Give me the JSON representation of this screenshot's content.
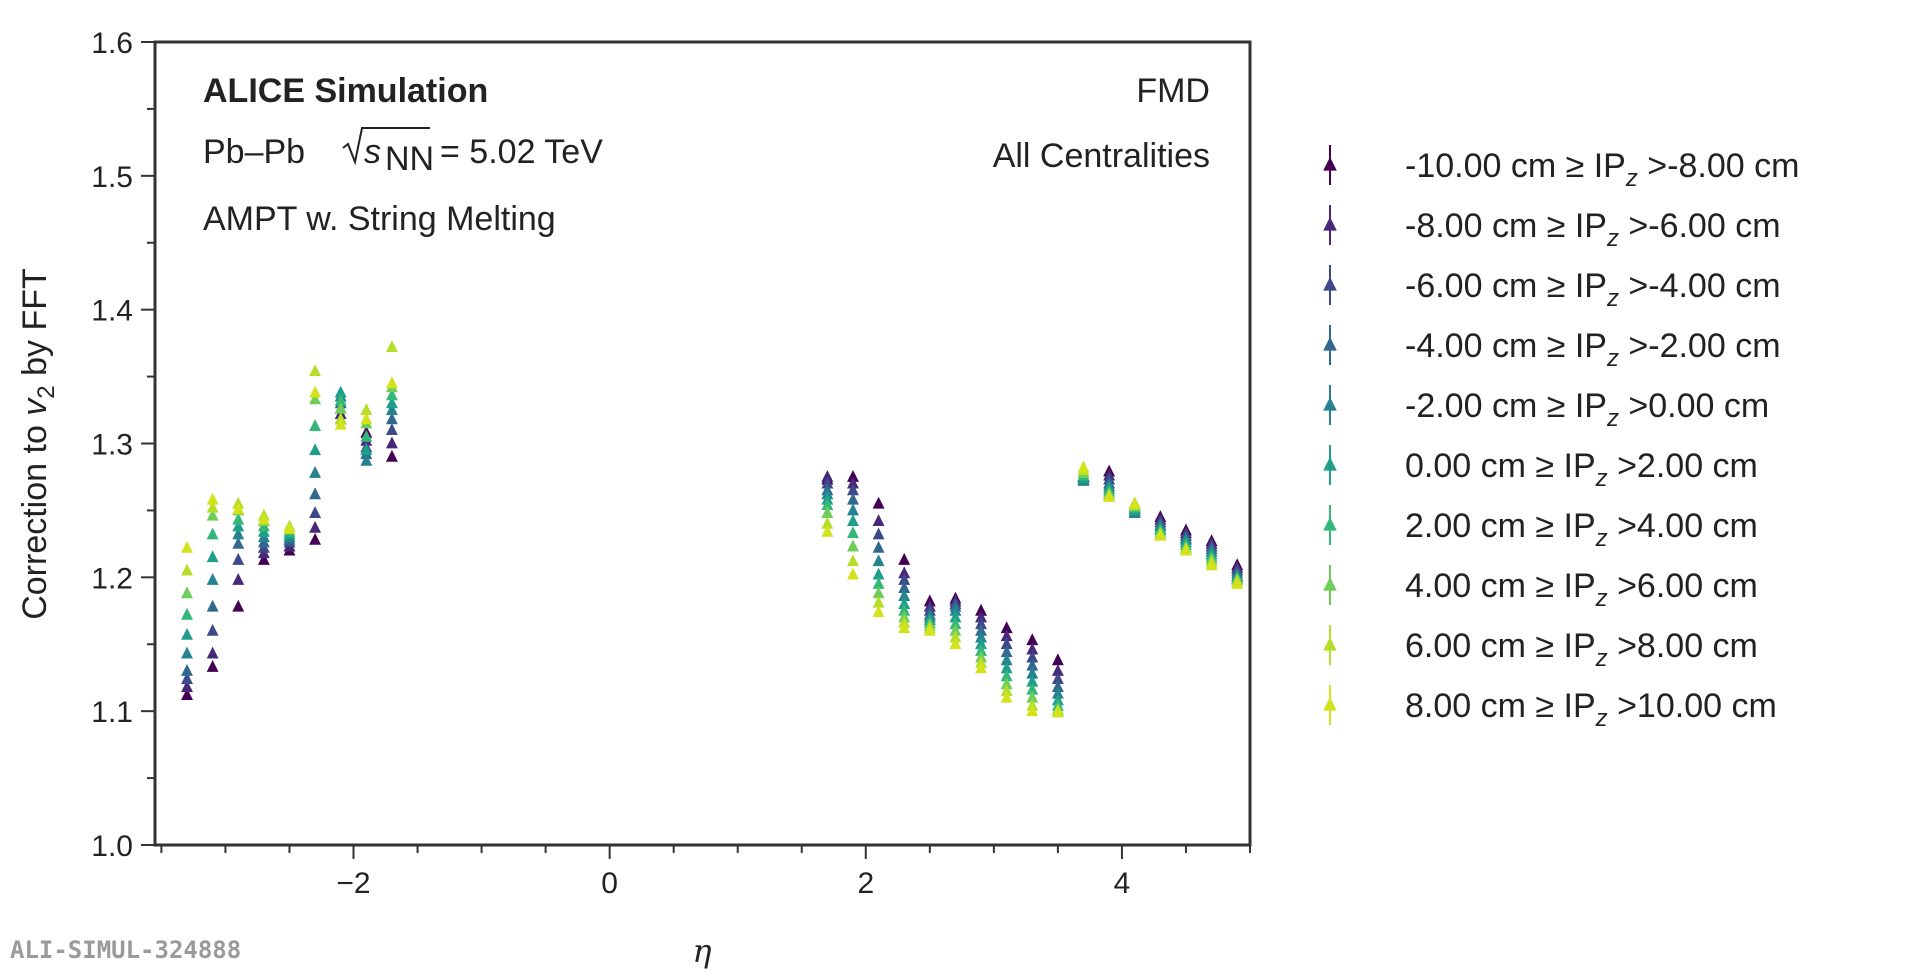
{
  "chart_data": {
    "type": "scatter",
    "title": "",
    "xlabel": "η",
    "ylabel_parts": [
      "Correction to ",
      "v",
      "2",
      " by FFT"
    ],
    "xlim": [
      -3.55,
      5.0
    ],
    "ylim": [
      1.0,
      1.6
    ],
    "x_ticks": [
      -2,
      0,
      2,
      4
    ],
    "x_tick_labels": [
      "−2",
      "0",
      "2",
      "4"
    ],
    "y_ticks": [
      1.0,
      1.1,
      1.2,
      1.3,
      1.4,
      1.5,
      1.6
    ],
    "y_tick_labels": [
      "1.0",
      "1.1",
      "1.2",
      "1.3",
      "1.4",
      "1.5",
      "1.6"
    ],
    "annotations": {
      "experiment": "ALICE Simulation",
      "system_prefix": "Pb–Pb",
      "energy_symbol": "s",
      "energy_subscript": "NN",
      "energy_value": "= 5.02 TeV",
      "generator": "AMPT w. String Melting",
      "detector": "FMD",
      "centrality": "All Centralities"
    },
    "watermark": "ALI-SIMUL-324888",
    "legend_location": "right",
    "x": [
      -3.3,
      -3.1,
      -2.9,
      -2.7,
      -2.5,
      -2.3,
      -2.1,
      -1.9,
      -1.7,
      1.7,
      1.9,
      2.1,
      2.3,
      2.5,
      2.7,
      2.9,
      3.1,
      3.3,
      3.5,
      3.7,
      3.9,
      4.1,
      4.3,
      4.5,
      4.7,
      4.9
    ],
    "series": [
      {
        "name": "-10.00 cm ≥ IP",
        "lo": "-10.00 cm ≥ IP",
        "hi": " >-8.00 cm",
        "color": "#440154",
        "values": [
          1.112,
          1.133,
          1.178,
          1.213,
          1.22,
          1.228,
          1.318,
          1.308,
          1.29,
          1.273,
          1.275,
          1.255,
          1.213,
          1.182,
          1.184,
          1.175,
          1.162,
          1.153,
          1.138,
          1.275,
          1.279,
          1.255,
          1.245,
          1.235,
          1.227,
          1.209
        ]
      },
      {
        "name": "-8.00 cm ≥ IP",
        "lo": "-8.00 cm ≥ IP",
        "hi": " >-6.00 cm",
        "color": "#482878",
        "values": [
          1.118,
          1.143,
          1.198,
          1.218,
          1.223,
          1.237,
          1.322,
          1.302,
          1.3,
          1.275,
          1.27,
          1.242,
          1.203,
          1.178,
          1.182,
          1.17,
          1.156,
          1.146,
          1.13,
          1.275,
          1.276,
          1.253,
          1.243,
          1.233,
          1.225,
          1.207
        ]
      },
      {
        "name": "-6.00 cm ≥ IP",
        "lo": "-6.00 cm ≥ IP",
        "hi": " >-4.00 cm",
        "color": "#3e4989",
        "values": [
          1.124,
          1.16,
          1.213,
          1.222,
          1.226,
          1.248,
          1.326,
          1.297,
          1.31,
          1.27,
          1.265,
          1.232,
          1.198,
          1.175,
          1.18,
          1.165,
          1.15,
          1.14,
          1.124,
          1.274,
          1.273,
          1.251,
          1.241,
          1.231,
          1.223,
          1.205
        ]
      },
      {
        "name": "-4.00 cm ≥ IP",
        "lo": "-4.00 cm ≥ IP",
        "hi": " >-2.00 cm",
        "color": "#31688e",
        "values": [
          1.13,
          1.178,
          1.225,
          1.226,
          1.228,
          1.262,
          1.33,
          1.292,
          1.318,
          1.265,
          1.258,
          1.222,
          1.192,
          1.172,
          1.178,
          1.16,
          1.144,
          1.134,
          1.118,
          1.273,
          1.27,
          1.249,
          1.239,
          1.229,
          1.221,
          1.203
        ]
      },
      {
        "name": "-2.00 cm ≥ IP",
        "lo": "-2.00 cm ≥ IP",
        "hi": " >0.00 cm",
        "color": "#26828e",
        "values": [
          1.143,
          1.198,
          1.232,
          1.23,
          1.23,
          1.278,
          1.335,
          1.287,
          1.325,
          1.262,
          1.25,
          1.212,
          1.186,
          1.17,
          1.175,
          1.155,
          1.138,
          1.128,
          1.113,
          1.272,
          1.268,
          1.248,
          1.238,
          1.228,
          1.219,
          1.201
        ]
      },
      {
        "name": "0.00 cm ≥ IP",
        "lo": "0.00 cm ≥ IP",
        "hi": " >2.00 cm",
        "color": "#1f9e89",
        "values": [
          1.157,
          1.215,
          1.238,
          1.234,
          1.232,
          1.295,
          1.338,
          1.295,
          1.33,
          1.258,
          1.242,
          1.202,
          1.18,
          1.168,
          1.17,
          1.15,
          1.132,
          1.122,
          1.108,
          1.274,
          1.266,
          1.25,
          1.236,
          1.226,
          1.217,
          1.2
        ]
      },
      {
        "name": "2.00 cm ≥ IP",
        "lo": "2.00 cm ≥ IP",
        "hi": " >4.00 cm",
        "color": "#35b779",
        "values": [
          1.172,
          1.232,
          1.243,
          1.238,
          1.234,
          1.313,
          1.332,
          1.305,
          1.336,
          1.254,
          1.233,
          1.195,
          1.175,
          1.166,
          1.165,
          1.145,
          1.126,
          1.116,
          1.104,
          1.276,
          1.264,
          1.252,
          1.235,
          1.224,
          1.215,
          1.199
        ]
      },
      {
        "name": "4.00 cm ≥ IP",
        "lo": "4.00 cm ≥ IP",
        "hi": " >6.00 cm",
        "color": "#6ece58",
        "values": [
          1.188,
          1.246,
          1.25,
          1.242,
          1.236,
          1.333,
          1.326,
          1.315,
          1.342,
          1.248,
          1.223,
          1.188,
          1.17,
          1.164,
          1.16,
          1.14,
          1.12,
          1.11,
          1.101,
          1.278,
          1.262,
          1.253,
          1.233,
          1.222,
          1.213,
          1.198
        ]
      },
      {
        "name": "6.00 cm ≥ IP",
        "lo": "6.00 cm ≥ IP",
        "hi": " >8.00 cm",
        "color": "#b5de2b",
        "values": [
          1.205,
          1.252,
          1.255,
          1.246,
          1.238,
          1.354,
          1.318,
          1.325,
          1.372,
          1.24,
          1.212,
          1.181,
          1.166,
          1.162,
          1.155,
          1.136,
          1.115,
          1.104,
          1.1,
          1.28,
          1.261,
          1.254,
          1.232,
          1.221,
          1.211,
          1.197
        ]
      },
      {
        "name": "8.00 cm ≥ IP",
        "lo": "8.00 cm ≥ IP",
        "hi": " >10.00 cm",
        "color": "#d2e21b",
        "values": [
          1.222,
          1.258,
          1.251,
          1.243,
          1.236,
          1.338,
          1.314,
          1.318,
          1.345,
          1.234,
          1.202,
          1.174,
          1.162,
          1.16,
          1.15,
          1.132,
          1.11,
          1.1,
          1.099,
          1.282,
          1.26,
          1.255,
          1.231,
          1.22,
          1.209,
          1.195
        ]
      }
    ],
    "legend_subscript": "z"
  }
}
